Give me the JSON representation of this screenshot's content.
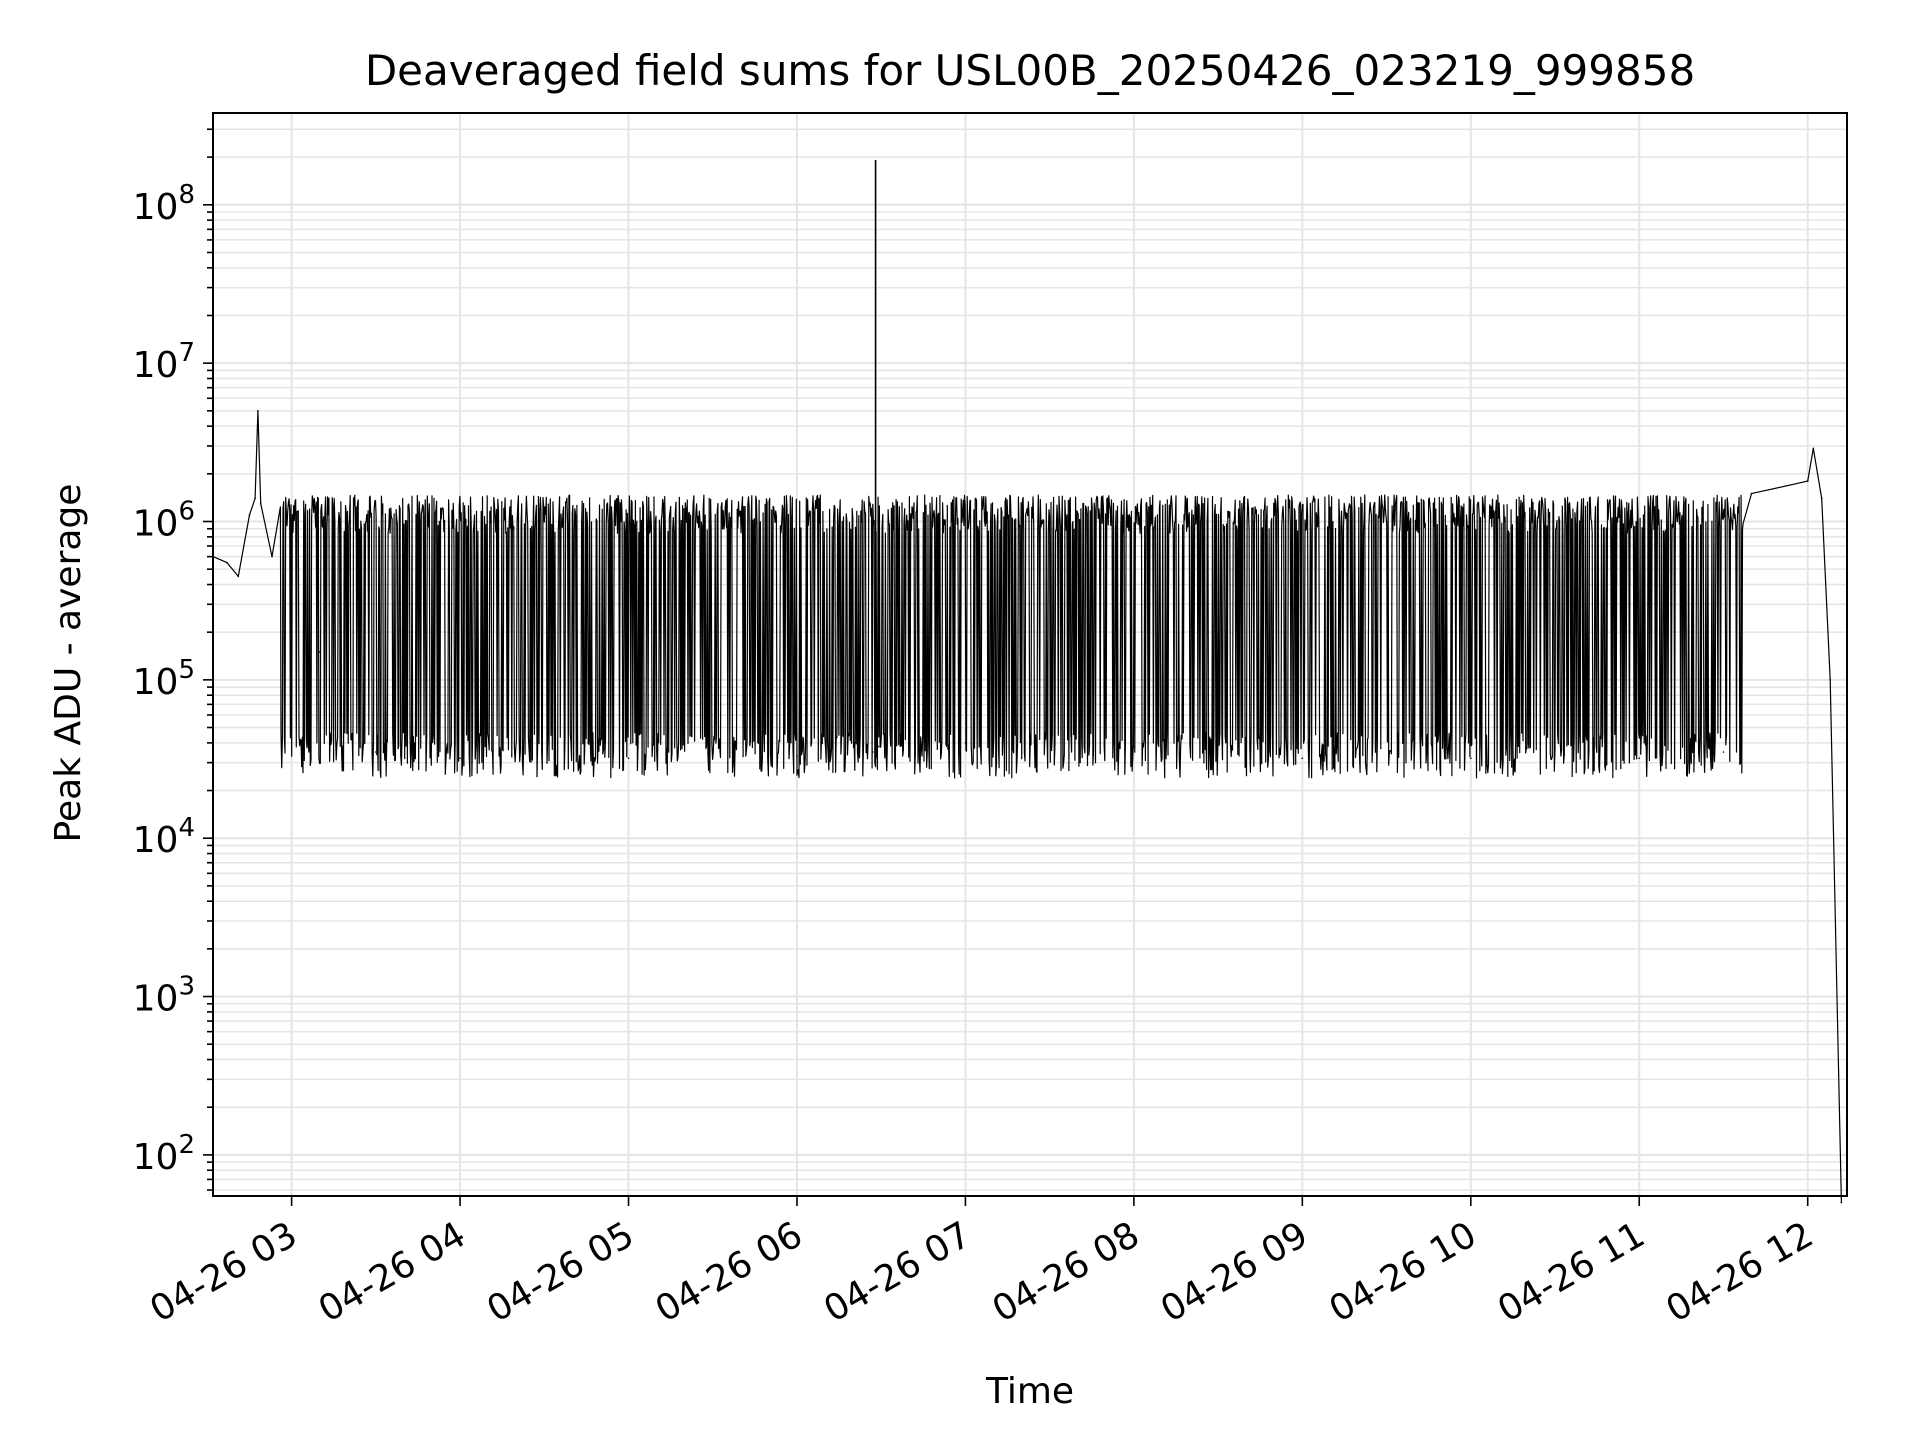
{
  "chart_data": {
    "type": "line",
    "title": "Deaveraged field sums for USL00B_20250426_023219_999858",
    "xlabel": "Time",
    "ylabel": "Peak ADU - average",
    "y_scale": "log",
    "ylim": [
      55,
      380000000
    ],
    "xlim": [
      "04-26 02:32",
      "04-26 12:14"
    ],
    "x_ticks": [
      "04-26 03",
      "04-26 04",
      "04-26 05",
      "04-26 06",
      "04-26 07",
      "04-26 08",
      "04-26 09",
      "04-26 10",
      "04-26 11",
      "04-26 12"
    ],
    "y_ticks": [
      {
        "base": "10",
        "exp": "2"
      },
      {
        "base": "10",
        "exp": "3"
      },
      {
        "base": "10",
        "exp": "4"
      },
      {
        "base": "10",
        "exp": "5"
      },
      {
        "base": "10",
        "exp": "6"
      },
      {
        "base": "10",
        "exp": "7"
      },
      {
        "base": "10",
        "exp": "8"
      }
    ],
    "grid": true,
    "line_color": "#000000",
    "grid_color": "#e5e5e5",
    "series": [
      {
        "points": [
          [
            "04-26 02:32",
            600000
          ],
          [
            "04-26 02:37",
            550000
          ],
          [
            "04-26 02:41",
            450000
          ],
          [
            "04-26 02:45",
            1100000
          ],
          [
            "04-26 02:47",
            1400000
          ],
          [
            "04-26 02:48",
            5000000
          ],
          [
            "04-26 02:49",
            1300000
          ],
          [
            "04-26 02:53",
            600000
          ],
          [
            "04-26 03:00",
            400000
          ],
          [
            "04-26 03:10",
            150000
          ],
          [
            "04-26 03:15",
            50000
          ],
          [
            "04-26 03:30",
            35000
          ],
          [
            "04-26 04:00",
            32000
          ],
          [
            "04-26 05:00",
            32000
          ],
          [
            "04-26 06:00",
            33000
          ],
          [
            "04-26 06:27",
            35000
          ],
          [
            "04-26 06:28",
            190000000
          ],
          [
            "04-26 06:29",
            38000
          ],
          [
            "04-26 07:00",
            40000
          ],
          [
            "04-26 08:00",
            38000
          ],
          [
            "04-26 09:00",
            32000
          ],
          [
            "04-26 10:00",
            32000
          ],
          [
            "04-26 11:00",
            32000
          ],
          [
            "04-26 11:30",
            35000
          ],
          [
            "04-26 11:40",
            1500000
          ],
          [
            "04-26 12:00",
            1800000
          ],
          [
            "04-26 12:02",
            2900000
          ],
          [
            "04-26 12:05",
            1400000
          ],
          [
            "04-26 12:08",
            100000
          ],
          [
            "04-26 12:12",
            50
          ]
        ],
        "spike_band": {
          "from": "04-26 02:56",
          "to": "04-26 11:37",
          "high": 1400000,
          "low": 32000
        }
      }
    ]
  }
}
